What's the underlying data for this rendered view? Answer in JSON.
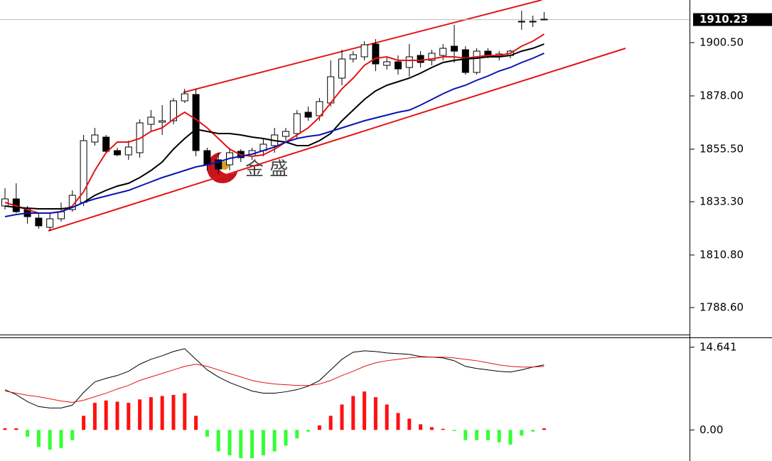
{
  "chart_data": [
    {
      "type": "candlestick",
      "open": [
        1831.5,
        1834.5,
        1830,
        1826.4,
        1822.5,
        1826.1,
        1830,
        1833,
        1858.5,
        1860.6,
        1854.9,
        1853.1,
        1854,
        1866,
        1866.9,
        1867.5,
        1875.9,
        1878.6,
        1854.9,
        1851,
        1848.9,
        1854.6,
        1852.5,
        1854.9,
        1857,
        1860.9,
        1862.1,
        1871.1,
        1869.6,
        1875,
        1885.5,
        1893.6,
        1894.5,
        1899.9,
        1890.9,
        1892.4,
        1890,
        1895.1,
        1893,
        1895.1,
        1899,
        1897.5,
        1887.9,
        1896.9,
        1894.5,
        1895.1,
        1909.2,
        1909.2,
        1910.4
      ],
      "high": [
        1839,
        1841.1,
        1831.5,
        1828.5,
        1828.5,
        1833,
        1838.1,
        1861.5,
        1864.5,
        1861.5,
        1856.1,
        1859.1,
        1868.1,
        1872,
        1874.1,
        1877.1,
        1881,
        1881,
        1856.1,
        1854,
        1856.1,
        1855.5,
        1856.1,
        1860,
        1864.5,
        1864.5,
        1872,
        1873.5,
        1877.1,
        1893,
        1897.5,
        1896.9,
        1901.1,
        1902,
        1894.5,
        1895.1,
        1899.9,
        1896.9,
        1897.5,
        1899.9,
        1908,
        1899,
        1898.1,
        1898.1,
        1896.9,
        1897.5,
        1914,
        1911.9,
        1913.4
      ],
      "low": [
        1830,
        1828.5,
        1824,
        1821.9,
        1821,
        1824.9,
        1829.1,
        1831.5,
        1857,
        1854,
        1852.5,
        1851,
        1851.9,
        1863,
        1861.5,
        1866,
        1875,
        1852.5,
        1846.5,
        1845,
        1846.5,
        1850.1,
        1851,
        1852.5,
        1854,
        1859.1,
        1860,
        1867.5,
        1867.5,
        1873.5,
        1882.5,
        1892.1,
        1893,
        1888.5,
        1889.1,
        1887,
        1886.1,
        1890,
        1890.9,
        1893,
        1892.1,
        1887,
        1887,
        1893.9,
        1893,
        1893.9,
        1905.9,
        1907.1,
        1910.1
      ],
      "close": [
        1834.5,
        1829.1,
        1827,
        1823.1,
        1826.1,
        1829.1,
        1836,
        1859.1,
        1861.5,
        1854.6,
        1853.1,
        1856.4,
        1866.6,
        1869,
        1867.5,
        1875.9,
        1878.9,
        1854.9,
        1848.9,
        1847.1,
        1854,
        1851.9,
        1854.9,
        1857.6,
        1861.5,
        1863,
        1870.5,
        1869,
        1875.6,
        1886.1,
        1893.6,
        1895.4,
        1899.6,
        1891.5,
        1892.4,
        1889.4,
        1894.5,
        1892.1,
        1896,
        1898.1,
        1896.9,
        1887.9,
        1896.9,
        1895.1,
        1895.7,
        1896.9,
        1909.5,
        1909.5,
        1910.23
      ],
      "series": [
        {
          "color": "#e41414",
          "values": [
            1833,
            1831.5,
            1830,
            1828.5,
            1828.5,
            1829.1,
            1831.5,
            1837.5,
            1846.5,
            1854,
            1858.5,
            1858.5,
            1860,
            1863,
            1864.5,
            1868.1,
            1871.1,
            1868.1,
            1864.5,
            1860,
            1855.5,
            1853.1,
            1852.5,
            1853.1,
            1855.5,
            1858.5,
            1861.5,
            1864.5,
            1869,
            1875,
            1881,
            1885.5,
            1890.9,
            1893.9,
            1894.5,
            1893,
            1893,
            1893,
            1893.6,
            1894.5,
            1894.5,
            1893.9,
            1894.5,
            1895.1,
            1895.1,
            1896,
            1899,
            1901.1,
            1904.1
          ]
        },
        {
          "color": "#000000",
          "values": [
            1831.5,
            1830.9,
            1830.6,
            1830.3,
            1830.3,
            1830.3,
            1830.9,
            1833,
            1836,
            1838.1,
            1839.9,
            1841.1,
            1843.5,
            1846.5,
            1850.1,
            1855.5,
            1860,
            1863.9,
            1863,
            1862.1,
            1862.1,
            1861.5,
            1860.6,
            1860,
            1859.1,
            1858.5,
            1857,
            1857,
            1859.1,
            1862.1,
            1867.5,
            1872,
            1876.5,
            1880.1,
            1882.5,
            1884,
            1885.5,
            1887.6,
            1890,
            1892.1,
            1893,
            1893.6,
            1893.9,
            1894.5,
            1894.5,
            1895.1,
            1896.9,
            1898.1,
            1899.9
          ]
        },
        {
          "color": "#0a14b4",
          "values": [
            1827,
            1827.9,
            1828.5,
            1828.5,
            1828.5,
            1829.1,
            1830.9,
            1833,
            1834.5,
            1835.7,
            1836.9,
            1838.1,
            1839.9,
            1841.7,
            1843.5,
            1845,
            1846.5,
            1848,
            1848.9,
            1850.1,
            1851.6,
            1852.5,
            1853.4,
            1854.9,
            1856.4,
            1858.5,
            1860,
            1860.9,
            1861.5,
            1863,
            1864.5,
            1866,
            1867.5,
            1868.7,
            1869.9,
            1871.1,
            1872,
            1874.1,
            1876.5,
            1878.9,
            1881,
            1882.5,
            1884.6,
            1886.4,
            1888.5,
            1890,
            1892.1,
            1893.9,
            1896
          ]
        }
      ],
      "last_price": 1910.23,
      "ylim": [
        1776.9,
        1918.5
      ],
      "yticks": [
        {
          "value": 1788.6,
          "label": "1788.60"
        },
        {
          "value": 1810.8,
          "label": "1810.80"
        },
        {
          "value": 1833.3,
          "label": "1833.30"
        },
        {
          "value": 1855.5,
          "label": "1855.50"
        },
        {
          "value": 1878,
          "label": "1878.00"
        },
        {
          "value": 1900.5,
          "label": "1900.50"
        }
      ],
      "watermark": "金 盛"
    },
    {
      "type": "macd",
      "histogram": [
        0.3,
        0.3,
        -1.2,
        -3,
        -3.5,
        -3.2,
        -1.8,
        2.5,
        4.8,
        5.2,
        5,
        4.8,
        5.4,
        5.8,
        6,
        6.2,
        6.5,
        2.5,
        -1.2,
        -3.8,
        -4.5,
        -5,
        -5,
        -4.5,
        -3.8,
        -2.8,
        -1.5,
        -0.3,
        0.8,
        2.5,
        4.5,
        6,
        6.8,
        5.8,
        4.5,
        3,
        2,
        1,
        0.5,
        0.2,
        -0.2,
        -1.8,
        -1.8,
        -1.8,
        -2.2,
        -2.6,
        -1,
        -0.3,
        0.3
      ],
      "up_color": "#ff1010",
      "down_color": "#33ff33",
      "series": [
        {
          "color": "#000000",
          "values": [
            7.13,
            6.25,
            5,
            4.13,
            3.88,
            3.88,
            4.38,
            6.63,
            8.5,
            9.13,
            9.63,
            10.38,
            11.63,
            12.5,
            13.13,
            13.88,
            14.38,
            12.5,
            10.63,
            9.38,
            8.38,
            7.63,
            6.88,
            6.5,
            6.5,
            6.75,
            7.13,
            7.75,
            8.75,
            10.63,
            12.5,
            13.75,
            14,
            13.88,
            13.63,
            13.5,
            13.38,
            13,
            12.88,
            12.75,
            12.25,
            11.25,
            10.88,
            10.63,
            10.38,
            10.25,
            10.63,
            11.13,
            11.5
          ]
        },
        {
          "color": "#e41414",
          "values": [
            6.88,
            6.5,
            6.13,
            5.88,
            5.5,
            5.13,
            4.88,
            5.25,
            5.88,
            6.5,
            7.25,
            7.88,
            8.75,
            9.38,
            10,
            10.63,
            11.25,
            11.63,
            11.25,
            10.63,
            10,
            9.38,
            8.75,
            8.38,
            8.13,
            8,
            7.88,
            7.88,
            8.13,
            8.75,
            9.63,
            10.38,
            11.25,
            11.88,
            12.25,
            12.5,
            12.75,
            12.88,
            12.88,
            12.88,
            12.75,
            12.5,
            12.25,
            11.88,
            11.5,
            11.25,
            11.13,
            11.13,
            11.25
          ]
        }
      ],
      "ylim": [
        -5.5,
        16.25
      ],
      "yticks": [
        {
          "value": 0,
          "label": "0.00"
        },
        14.641
      ]
    }
  ]
}
